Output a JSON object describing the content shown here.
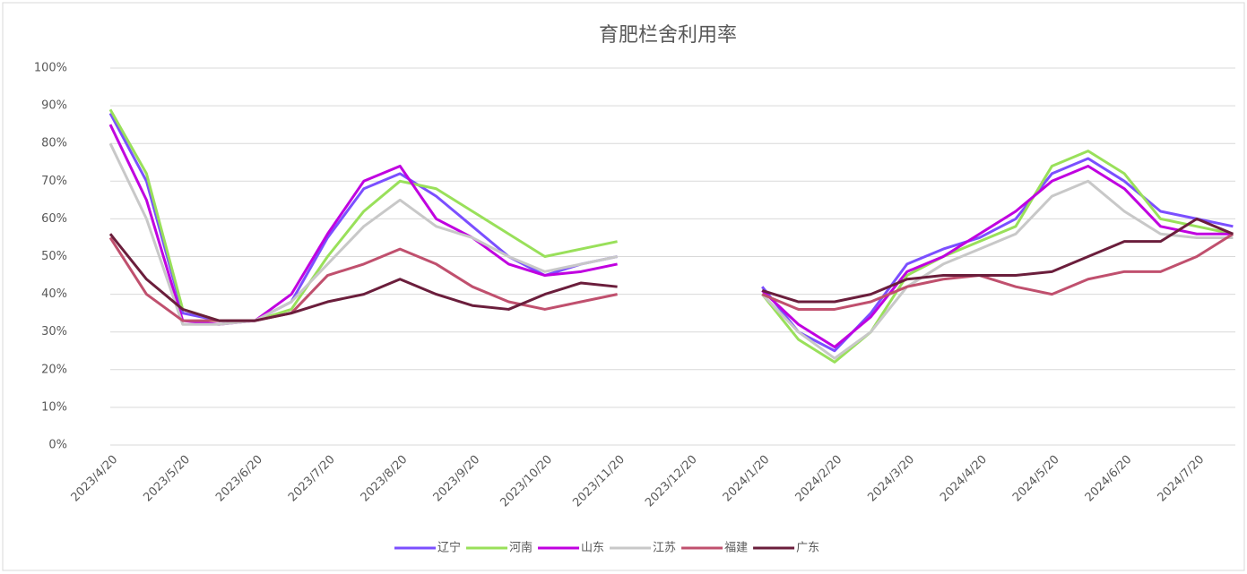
{
  "chart_data": {
    "type": "line",
    "title": "育肥栏舍利用率",
    "categories": [
      "2023/4/20",
      null,
      "2023/5/20",
      null,
      "2023/6/20",
      null,
      "2023/7/20",
      null,
      "2023/8/20",
      null,
      "2023/9/20",
      null,
      "2023/10/20",
      null,
      "2023/11/20",
      null,
      "2023/12/20",
      null,
      "2024/1/20",
      null,
      "2024/2/20",
      null,
      "2024/3/20",
      null,
      "2024/4/20",
      null,
      "2024/5/20",
      null,
      "2024/6/20",
      null,
      "2024/7/20",
      null
    ],
    "series": [
      {
        "name": "辽宁",
        "color": "#7b4fff",
        "values": [
          88,
          70,
          35,
          33,
          33,
          38,
          55,
          68,
          72,
          66,
          58,
          50,
          45,
          48,
          50,
          null,
          null,
          null,
          42,
          30,
          25,
          35,
          48,
          52,
          55,
          60,
          72,
          76,
          70,
          62,
          60,
          58
        ]
      },
      {
        "name": "河南",
        "color": "#99e05a",
        "values": [
          89,
          72,
          36,
          33,
          33,
          36,
          50,
          62,
          70,
          68,
          62,
          56,
          50,
          52,
          54,
          null,
          null,
          null,
          40,
          28,
          22,
          30,
          45,
          50,
          54,
          58,
          74,
          78,
          72,
          60,
          58,
          56
        ]
      },
      {
        "name": "山东",
        "color": "#c000e0",
        "values": [
          85,
          65,
          33,
          32,
          33,
          40,
          56,
          70,
          74,
          60,
          55,
          48,
          45,
          46,
          48,
          null,
          null,
          null,
          41,
          32,
          26,
          34,
          46,
          50,
          56,
          62,
          70,
          74,
          68,
          58,
          56,
          56
        ]
      },
      {
        "name": "江苏",
        "color": "#c8c8c8",
        "values": [
          80,
          60,
          32,
          32,
          33,
          38,
          48,
          58,
          65,
          58,
          55,
          50,
          46,
          48,
          50,
          null,
          null,
          null,
          40,
          30,
          23,
          30,
          42,
          48,
          52,
          56,
          66,
          70,
          62,
          56,
          55,
          55
        ]
      },
      {
        "name": "福建",
        "color": "#c0506e",
        "values": [
          55,
          40,
          33,
          33,
          33,
          35,
          45,
          48,
          52,
          48,
          42,
          38,
          36,
          38,
          40,
          null,
          null,
          null,
          40,
          36,
          36,
          38,
          42,
          44,
          45,
          42,
          40,
          44,
          46,
          46,
          50,
          56
        ]
      },
      {
        "name": "广东",
        "color": "#6b1e3c",
        "values": [
          56,
          44,
          36,
          33,
          33,
          35,
          38,
          40,
          44,
          40,
          37,
          36,
          40,
          43,
          42,
          null,
          null,
          null,
          41,
          38,
          38,
          40,
          44,
          45,
          45,
          45,
          46,
          50,
          54,
          54,
          60,
          56
        ]
      }
    ],
    "ylim": [
      0,
      100
    ],
    "yticks": [
      {
        "value": 0,
        "label": "0%"
      },
      {
        "value": 10,
        "label": "10%"
      },
      {
        "value": 20,
        "label": "20%"
      },
      {
        "value": 30,
        "label": "30%"
      },
      {
        "value": 40,
        "label": "40%"
      },
      {
        "value": 50,
        "label": "50%"
      },
      {
        "value": 60,
        "label": "60%"
      },
      {
        "value": 70,
        "label": "70%"
      },
      {
        "value": 80,
        "label": "80%"
      },
      {
        "value": 90,
        "label": "90%"
      },
      {
        "value": 100,
        "label": "100%"
      }
    ],
    "grid": true,
    "legend": "bottom"
  }
}
